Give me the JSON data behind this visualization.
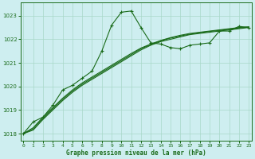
{
  "xlabel": "Graphe pression niveau de la mer (hPa)",
  "bg_color": "#ceeef0",
  "grid_color": "#a8d8c8",
  "line_color": "#1a6b1a",
  "ylim": [
    1017.7,
    1023.55
  ],
  "xlim": [
    -0.3,
    23.3
  ],
  "yticks": [
    1018,
    1019,
    1020,
    1021,
    1022,
    1023
  ],
  "xticks": [
    0,
    1,
    2,
    3,
    4,
    5,
    6,
    7,
    8,
    9,
    10,
    11,
    12,
    13,
    14,
    15,
    16,
    17,
    18,
    19,
    20,
    21,
    22,
    23
  ],
  "wavy_x": [
    0,
    1,
    2,
    3,
    4,
    5,
    6,
    7,
    8,
    9,
    10,
    11,
    12,
    13,
    14,
    15,
    16,
    17,
    18,
    19,
    20,
    21,
    22,
    23
  ],
  "wavy_y": [
    1018.0,
    1018.5,
    1018.7,
    1019.2,
    1019.85,
    1020.05,
    1020.35,
    1020.65,
    1021.5,
    1022.6,
    1023.15,
    1023.2,
    1022.5,
    1021.85,
    1021.8,
    1021.65,
    1021.6,
    1021.75,
    1021.8,
    1021.85,
    1022.35,
    1022.35,
    1022.55,
    1022.5
  ],
  "straight1_x": [
    0,
    1,
    2,
    3,
    4,
    5,
    6,
    7,
    8,
    9,
    10,
    11,
    12,
    13,
    14,
    15,
    16,
    17,
    18,
    19,
    20,
    21,
    22,
    23
  ],
  "straight1_y": [
    1018.0,
    1018.15,
    1018.6,
    1019.0,
    1019.4,
    1019.75,
    1020.05,
    1020.3,
    1020.55,
    1020.8,
    1021.05,
    1021.3,
    1021.55,
    1021.75,
    1021.9,
    1022.0,
    1022.1,
    1022.2,
    1022.25,
    1022.3,
    1022.35,
    1022.4,
    1022.45,
    1022.5
  ],
  "straight2_x": [
    0,
    1,
    2,
    3,
    4,
    5,
    6,
    7,
    8,
    9,
    10,
    11,
    12,
    13,
    14,
    15,
    16,
    17,
    18,
    19,
    20,
    21,
    22,
    23
  ],
  "straight2_y": [
    1018.0,
    1018.2,
    1018.65,
    1019.05,
    1019.45,
    1019.8,
    1020.1,
    1020.35,
    1020.6,
    1020.85,
    1021.1,
    1021.35,
    1021.6,
    1021.78,
    1021.93,
    1022.05,
    1022.14,
    1022.22,
    1022.28,
    1022.33,
    1022.38,
    1022.43,
    1022.48,
    1022.52
  ],
  "straight3_x": [
    0,
    1,
    2,
    3,
    4,
    5,
    6,
    7,
    8,
    9,
    10,
    11,
    12,
    13,
    14,
    15,
    16,
    17,
    18,
    19,
    20,
    21,
    22,
    23
  ],
  "straight3_y": [
    1018.0,
    1018.25,
    1018.7,
    1019.1,
    1019.5,
    1019.85,
    1020.15,
    1020.4,
    1020.65,
    1020.9,
    1021.15,
    1021.4,
    1021.63,
    1021.8,
    1021.95,
    1022.07,
    1022.17,
    1022.25,
    1022.3,
    1022.35,
    1022.4,
    1022.45,
    1022.5,
    1022.53
  ]
}
